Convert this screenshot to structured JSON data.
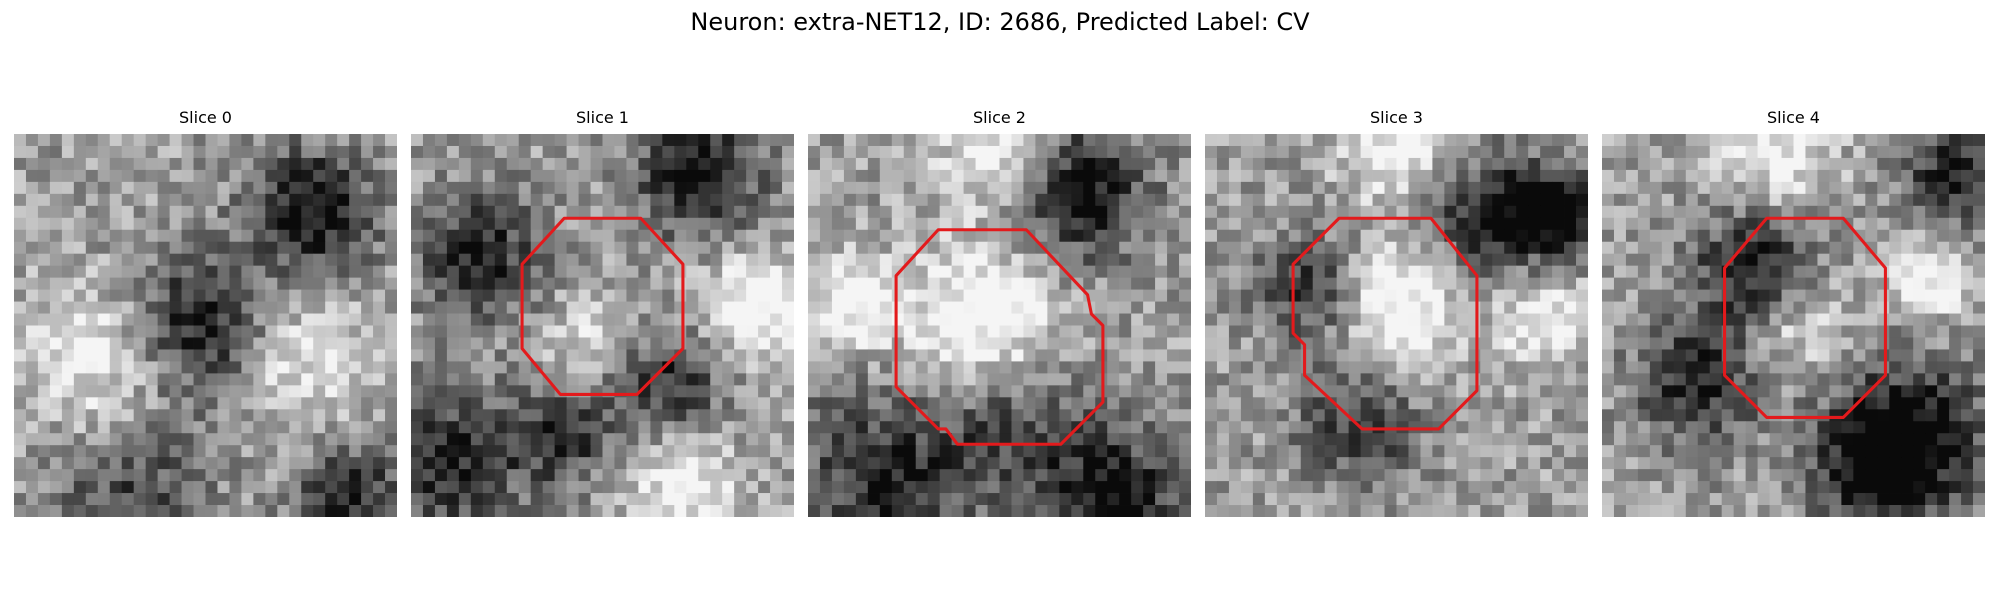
{
  "title": "Neuron: extra-NET12, ID: 2686, Predicted Label: CV",
  "contour_color": "#e31a1c",
  "slices": [
    {
      "label": "Slice 0",
      "dark_spots": [
        [
          0.48,
          0.5,
          0.18,
          0.55
        ],
        [
          0.78,
          0.2,
          0.16,
          0.6
        ],
        [
          0.3,
          0.92,
          0.2,
          0.35
        ],
        [
          0.88,
          0.95,
          0.14,
          0.5
        ]
      ],
      "light_spots": [
        [
          0.22,
          0.6,
          0.2,
          0.35
        ],
        [
          0.75,
          0.6,
          0.18,
          0.3
        ]
      ],
      "contour": []
    },
    {
      "label": "Slice 1",
      "dark_spots": [
        [
          0.18,
          0.32,
          0.16,
          0.5
        ],
        [
          0.68,
          0.65,
          0.14,
          0.45
        ],
        [
          0.75,
          0.1,
          0.16,
          0.6
        ],
        [
          0.1,
          0.85,
          0.18,
          0.5
        ],
        [
          0.4,
          0.78,
          0.14,
          0.45
        ]
      ],
      "light_spots": [
        [
          0.9,
          0.45,
          0.14,
          0.45
        ],
        [
          0.45,
          0.55,
          0.12,
          0.25
        ],
        [
          0.7,
          0.92,
          0.15,
          0.35
        ]
      ],
      "contour": [
        [
          0.4,
          0.22
        ],
        [
          0.6,
          0.22
        ],
        [
          0.71,
          0.34
        ],
        [
          0.71,
          0.56
        ],
        [
          0.59,
          0.68
        ],
        [
          0.39,
          0.68
        ],
        [
          0.29,
          0.56
        ],
        [
          0.29,
          0.34
        ]
      ]
    },
    {
      "label": "Slice 2",
      "dark_spots": [
        [
          0.7,
          0.15,
          0.18,
          0.6
        ],
        [
          0.2,
          0.9,
          0.25,
          0.45
        ],
        [
          0.8,
          0.95,
          0.16,
          0.6
        ],
        [
          0.55,
          0.75,
          0.2,
          0.35
        ]
      ],
      "light_spots": [
        [
          0.45,
          0.5,
          0.2,
          0.5
        ],
        [
          0.1,
          0.45,
          0.12,
          0.4
        ],
        [
          0.5,
          0.05,
          0.15,
          0.4
        ]
      ],
      "contour": [
        [
          0.34,
          0.25
        ],
        [
          0.57,
          0.25
        ],
        [
          0.73,
          0.42
        ],
        [
          0.74,
          0.47
        ],
        [
          0.77,
          0.5
        ],
        [
          0.77,
          0.7
        ],
        [
          0.66,
          0.81
        ],
        [
          0.39,
          0.81
        ],
        [
          0.36,
          0.77
        ],
        [
          0.34,
          0.77
        ],
        [
          0.23,
          0.66
        ],
        [
          0.23,
          0.37
        ]
      ]
    },
    {
      "label": "Slice 3",
      "dark_spots": [
        [
          0.75,
          0.22,
          0.16,
          0.55
        ],
        [
          0.92,
          0.2,
          0.12,
          0.55
        ],
        [
          0.28,
          0.4,
          0.14,
          0.45
        ],
        [
          0.4,
          0.76,
          0.16,
          0.4
        ]
      ],
      "light_spots": [
        [
          0.5,
          0.45,
          0.16,
          0.5
        ],
        [
          0.88,
          0.48,
          0.12,
          0.4
        ],
        [
          0.5,
          0.05,
          0.14,
          0.35
        ]
      ],
      "contour": [
        [
          0.35,
          0.22
        ],
        [
          0.59,
          0.22
        ],
        [
          0.71,
          0.37
        ],
        [
          0.71,
          0.67
        ],
        [
          0.61,
          0.77
        ],
        [
          0.41,
          0.77
        ],
        [
          0.26,
          0.63
        ],
        [
          0.26,
          0.55
        ],
        [
          0.23,
          0.52
        ],
        [
          0.23,
          0.34
        ]
      ]
    },
    {
      "label": "Slice 4",
      "dark_spots": [
        [
          0.4,
          0.35,
          0.16,
          0.55
        ],
        [
          0.25,
          0.65,
          0.16,
          0.5
        ],
        [
          0.8,
          0.78,
          0.2,
          0.55
        ],
        [
          0.92,
          0.1,
          0.14,
          0.5
        ],
        [
          0.72,
          0.88,
          0.16,
          0.45
        ]
      ],
      "light_spots": [
        [
          0.5,
          0.5,
          0.14,
          0.3
        ],
        [
          0.85,
          0.38,
          0.1,
          0.45
        ],
        [
          0.45,
          0.06,
          0.15,
          0.35
        ]
      ],
      "contour": [
        [
          0.43,
          0.22
        ],
        [
          0.63,
          0.22
        ],
        [
          0.74,
          0.35
        ],
        [
          0.74,
          0.63
        ],
        [
          0.63,
          0.74
        ],
        [
          0.43,
          0.74
        ],
        [
          0.32,
          0.63
        ],
        [
          0.32,
          0.35
        ]
      ]
    }
  ]
}
